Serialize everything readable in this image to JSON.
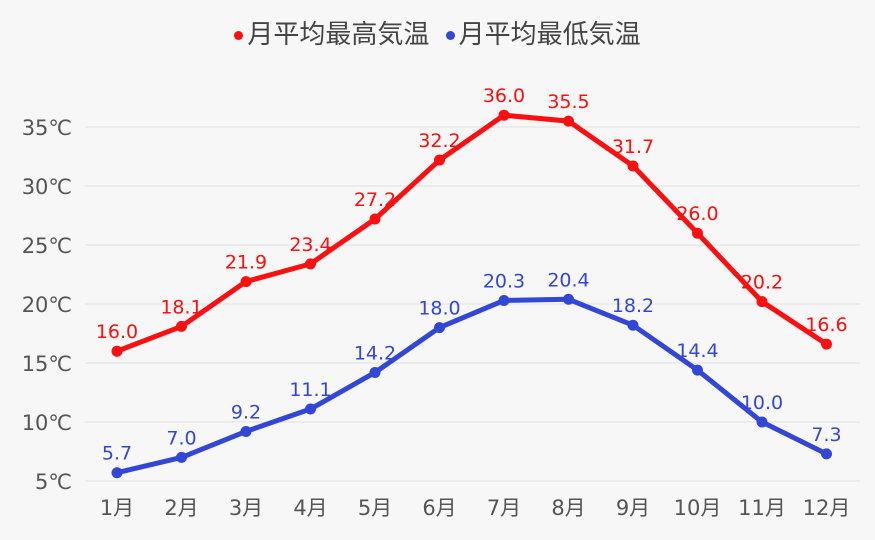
{
  "chart_data": {
    "type": "line",
    "categories": [
      "1月",
      "2月",
      "3月",
      "4月",
      "5月",
      "6月",
      "7月",
      "8月",
      "9月",
      "10月",
      "11月",
      "12月"
    ],
    "series": [
      {
        "name": "月平均最高気温",
        "color": "#ff0f0f",
        "values": [
          16.0,
          18.1,
          21.9,
          23.4,
          27.2,
          32.2,
          36.0,
          35.5,
          31.7,
          26.0,
          20.2,
          16.6
        ]
      },
      {
        "name": "月平均最低気温",
        "color": "#3347d6",
        "values": [
          5.7,
          7.0,
          9.2,
          11.1,
          14.2,
          18.0,
          20.3,
          20.4,
          18.2,
          14.4,
          10.0,
          7.3
        ]
      }
    ],
    "yticks": [
      5,
      10,
      15,
      20,
      25,
      30,
      35
    ],
    "ytick_suffix": "℃",
    "ylim": [
      5,
      35
    ],
    "grid": true,
    "legend": "top-center"
  }
}
